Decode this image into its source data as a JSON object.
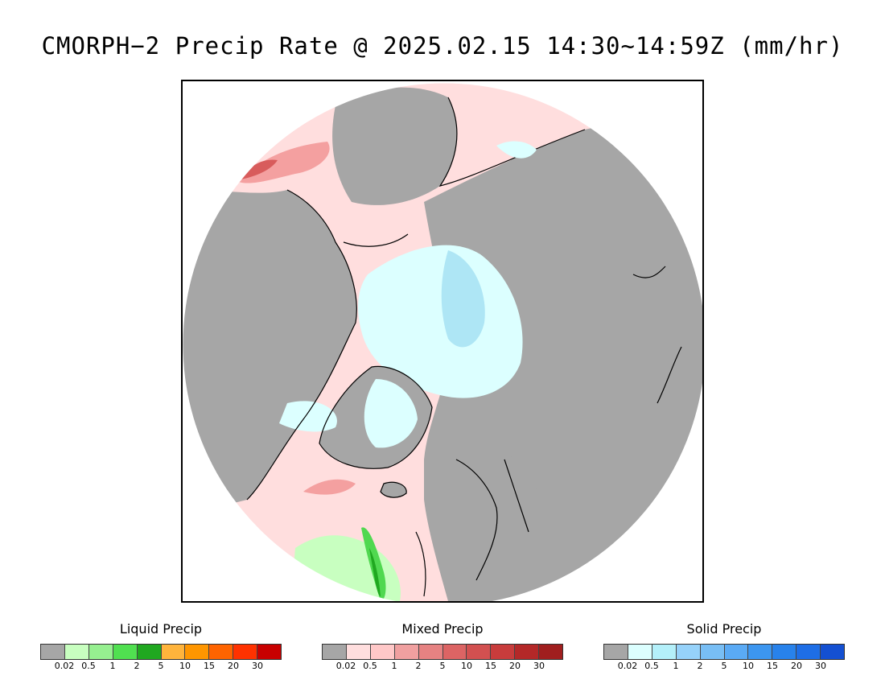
{
  "title": "CMORPH−2 Precip Rate @ 2025.02.15 14:30~14:59Z (mm/hr)",
  "map": {
    "projection": "polar-stereographic-north",
    "colors": {
      "no_precip": "#a6a6a6",
      "mixed_light": "#ffdede",
      "mixed_moderate": "#f4a0a0",
      "mixed_heavy": "#d85c5c",
      "solid_light": "#dcffff",
      "solid_moderate": "#aee6f5",
      "liquid_light": "#c8ffc0",
      "liquid_moderate": "#50d850",
      "liquid_heavy": "#20a820",
      "coastline": "#000000"
    }
  },
  "legends": [
    {
      "title": "Liquid Precip",
      "colors": [
        "#a6a6a6",
        "#c8ffc0",
        "#96f090",
        "#50e050",
        "#20a820",
        "#ffb43c",
        "#ff9600",
        "#ff6400",
        "#ff3200",
        "#c80000"
      ],
      "ticks": [
        "0.02",
        "0.5",
        "1",
        "2",
        "5",
        "10",
        "15",
        "20",
        "30"
      ]
    },
    {
      "title": "Mixed Precip",
      "colors": [
        "#a6a6a6",
        "#ffdede",
        "#ffc8c8",
        "#f0a0a0",
        "#e68282",
        "#dc6464",
        "#d25050",
        "#c83c3c",
        "#b42828",
        "#a01e1e"
      ],
      "ticks": [
        "0.02",
        "0.5",
        "1",
        "2",
        "5",
        "10",
        "15",
        "20",
        "30"
      ]
    },
    {
      "title": "Solid Precip",
      "colors": [
        "#a6a6a6",
        "#dcffff",
        "#b4f0fa",
        "#96d2fa",
        "#78bef5",
        "#5aaaf5",
        "#3c96f0",
        "#2882eb",
        "#1e6ee6",
        "#1450d2"
      ],
      "ticks": [
        "0.02",
        "0.5",
        "1",
        "2",
        "5",
        "10",
        "15",
        "20",
        "30"
      ]
    }
  ]
}
